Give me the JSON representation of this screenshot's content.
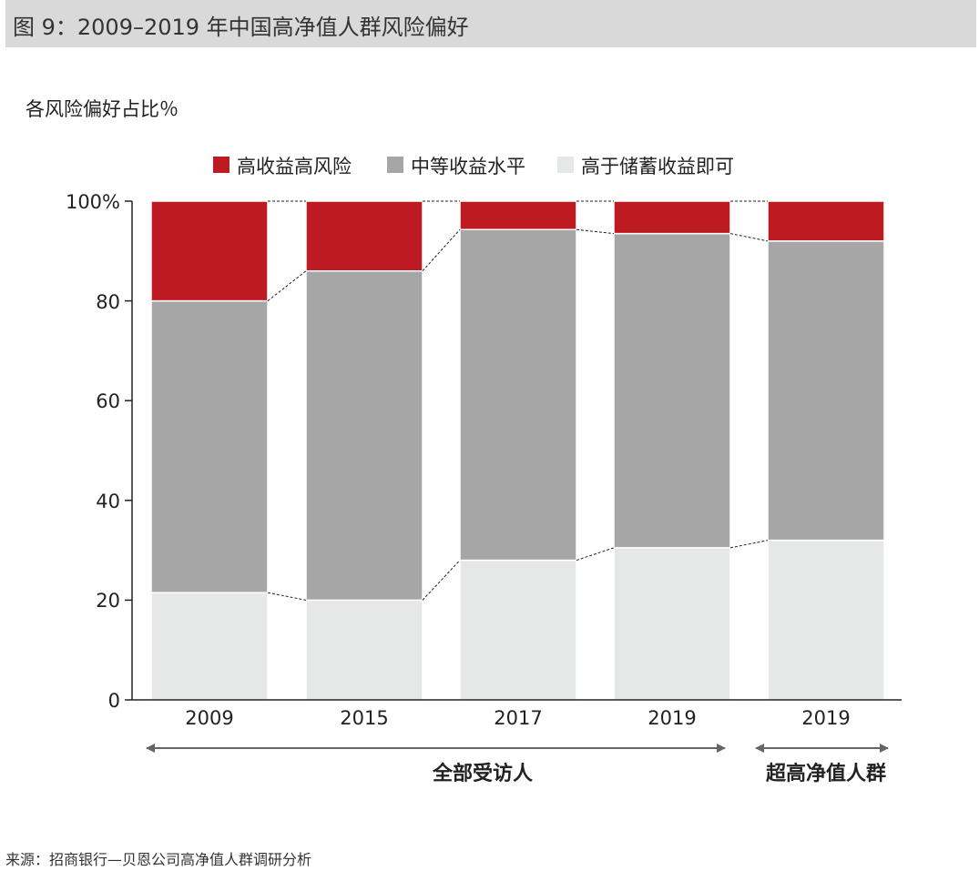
{
  "title": "图 9：2009–2019 年中国高净值人群风险偏好",
  "unit_label": "各风险偏好占比％",
  "source": "来源：招商银行—贝恩公司高净值人群调研分析",
  "colors": {
    "high": "#be1a21",
    "medium": "#a6a6a6",
    "low": "#e6e8e7",
    "axis": "#222222",
    "title_bar": "#d9d9d9"
  },
  "chart_data": {
    "type": "bar",
    "stacked": true,
    "categories": [
      "2009",
      "2015",
      "2017",
      "2019",
      "2019"
    ],
    "series": [
      {
        "name": "高于储蓄收益即可",
        "values": [
          21.5,
          20,
          28,
          30.5,
          32
        ]
      },
      {
        "name": "中等收益水平",
        "values": [
          58.5,
          66,
          66.3,
          63,
          60
        ]
      },
      {
        "name": "高收益高风险",
        "values": [
          20,
          14,
          5.7,
          6.5,
          8
        ]
      }
    ],
    "legend_order": [
      "高收益高风险",
      "中等收益水平",
      "高于储蓄收益即可"
    ],
    "y_ticks": [
      "0",
      "20",
      "40",
      "60",
      "80",
      "100%"
    ],
    "ylim": [
      0,
      100
    ],
    "groups": [
      {
        "label": "全部受访人",
        "categories": [
          "2009",
          "2015",
          "2017",
          "2019"
        ]
      },
      {
        "label": "超高净值人群",
        "categories": [
          "2019"
        ]
      }
    ],
    "legend_position": "top",
    "grid": false
  }
}
